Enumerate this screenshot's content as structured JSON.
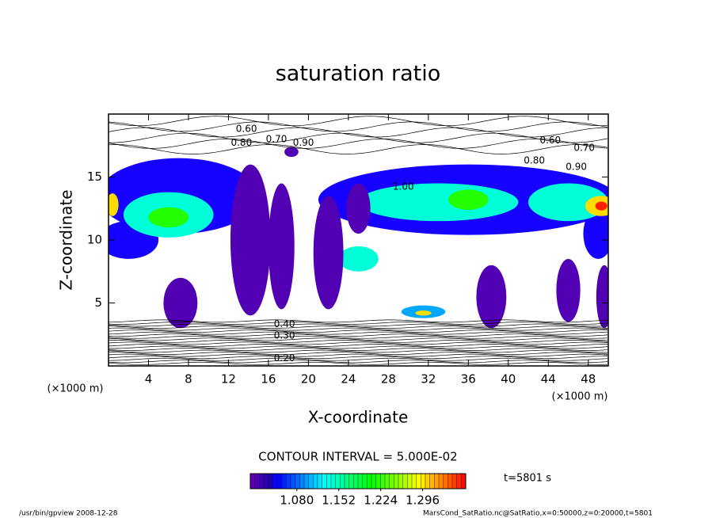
{
  "chart_data": {
    "type": "contour",
    "title": "saturation ratio",
    "x_label": "X-coordinate",
    "y_label": "Z-coordinate",
    "x_unit": "(×1000 m)",
    "y_unit": "(×1000 m)",
    "xlim": [
      0,
      50
    ],
    "ylim": [
      0,
      20
    ],
    "xticks": [
      4,
      8,
      12,
      16,
      20,
      24,
      28,
      32,
      36,
      40,
      44,
      48
    ],
    "yticks": [
      5,
      10,
      15
    ],
    "regions": [
      {
        "value": 1.04,
        "x": 7,
        "z": 13.5,
        "rx": 8,
        "rz": 3
      },
      {
        "value": 1.04,
        "x": 36,
        "z": 13.2,
        "rx": 15,
        "rz": 2.8
      },
      {
        "value": 1.04,
        "x": 2,
        "z": 10,
        "rx": 3,
        "rz": 1.5
      },
      {
        "value": 1.04,
        "x": 49,
        "z": 10.5,
        "rx": 1.5,
        "rz": 2
      },
      {
        "value": 1.14,
        "x": 6,
        "z": 12,
        "rx": 4.5,
        "rz": 1.8
      },
      {
        "value": 1.14,
        "x": 33,
        "z": 13,
        "rx": 8,
        "rz": 1.5
      },
      {
        "value": 1.14,
        "x": 46,
        "z": 13,
        "rx": 4,
        "rz": 1.5
      },
      {
        "value": 1.14,
        "x": 25,
        "z": 8.5,
        "rx": 2,
        "rz": 1
      },
      {
        "value": 1.22,
        "x": 6,
        "z": 11.8,
        "rx": 2,
        "rz": 0.8
      },
      {
        "value": 1.22,
        "x": 36,
        "z": 13.2,
        "rx": 2,
        "rz": 0.8
      },
      {
        "value": 1.3,
        "x": 49.3,
        "z": 12.7,
        "rx": 1.6,
        "rz": 0.8
      },
      {
        "value": 1.3,
        "x": 0.4,
        "z": 12.8,
        "rx": 0.6,
        "rz": 0.9
      },
      {
        "value": 1.36,
        "x": 49.3,
        "z": 12.7,
        "rx": 0.6,
        "rz": 0.35
      },
      {
        "value": 1.01,
        "x": 14.2,
        "z": 10,
        "rx": 2,
        "rz": 6
      },
      {
        "value": 1.01,
        "x": 17.3,
        "z": 9.5,
        "rx": 1.3,
        "rz": 5
      },
      {
        "value": 1.01,
        "x": 22,
        "z": 9,
        "rx": 1.5,
        "rz": 4.5
      },
      {
        "value": 1.01,
        "x": 25,
        "z": 12.5,
        "rx": 1.2,
        "rz": 2
      },
      {
        "value": 1.01,
        "x": 7.2,
        "z": 5,
        "rx": 1.7,
        "rz": 2
      },
      {
        "value": 1.01,
        "x": 38.3,
        "z": 5.5,
        "rx": 1.5,
        "rz": 2.5
      },
      {
        "value": 1.01,
        "x": 46,
        "z": 6,
        "rx": 1.2,
        "rz": 2.5
      },
      {
        "value": 1.01,
        "x": 49.6,
        "z": 5.5,
        "rx": 0.8,
        "rz": 2.5
      },
      {
        "value": 1.01,
        "x": 18.3,
        "z": 17,
        "rx": 0.7,
        "rz": 0.4
      },
      {
        "value": 1.1,
        "x": 31.5,
        "z": 4.3,
        "rx": 2.2,
        "rz": 0.5
      },
      {
        "value": 1.3,
        "x": 31.5,
        "z": 4.2,
        "rx": 0.8,
        "rz": 0.2
      }
    ],
    "contour_labels": [
      {
        "label": "0.60",
        "x": 13.8,
        "z": 18.8
      },
      {
        "label": "0.80",
        "x": 13.3,
        "z": 17.7
      },
      {
        "label": "0.70",
        "x": 16.8,
        "z": 18.0
      },
      {
        "label": "0.90",
        "x": 19.5,
        "z": 17.7
      },
      {
        "label": "0.60",
        "x": 44.2,
        "z": 17.9
      },
      {
        "label": "0.70",
        "x": 47.6,
        "z": 17.3
      },
      {
        "label": "0.80",
        "x": 42.6,
        "z": 16.3
      },
      {
        "label": "0.90",
        "x": 46.8,
        "z": 15.8
      },
      {
        "label": "1.00",
        "x": 29.5,
        "z": 14.2
      },
      {
        "label": "0.40",
        "x": 17.6,
        "z": 3.3
      },
      {
        "label": "0.30",
        "x": 17.6,
        "z": 2.4
      },
      {
        "label": "0.20",
        "x": 17.6,
        "z": 0.6
      }
    ],
    "colorbar": {
      "clim": [
        1.0,
        1.37
      ],
      "ticks": [
        {
          "value": 1.08,
          "label": "1.080"
        },
        {
          "value": 1.152,
          "label": "1.152"
        },
        {
          "value": 1.224,
          "label": "1.224"
        },
        {
          "value": 1.296,
          "label": "1.296"
        }
      ]
    },
    "contour_interval_text": "CONTOUR INTERVAL = 5.000E-02",
    "time_label": "t=5801 s",
    "footer_left": "/usr/bin/gpview   2008-12-28",
    "footer_right": "MarsCond_SatRatio.nc@SatRatio,x=0:50000,z=0:20000,t=5801"
  }
}
